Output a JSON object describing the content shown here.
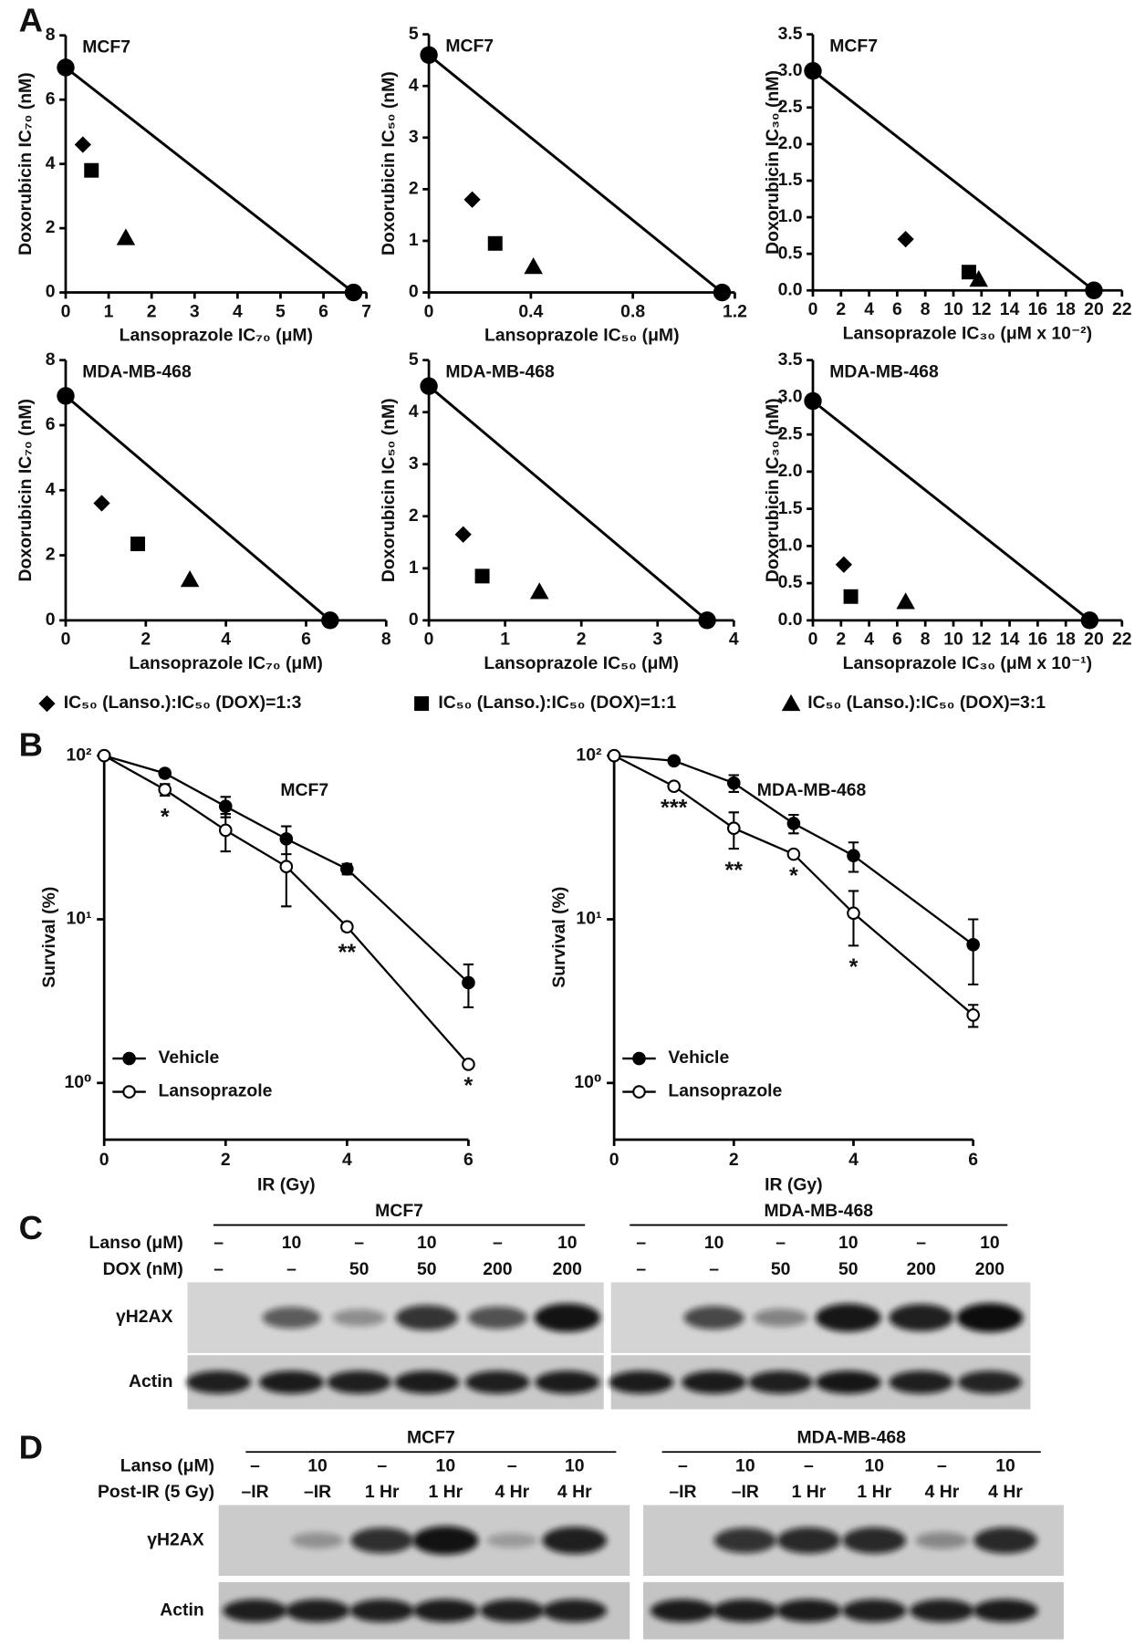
{
  "panel_labels": [
    "A",
    "B",
    "C",
    "D"
  ],
  "chart_data": [
    {
      "type": "scatter",
      "title": "MCF7",
      "xlabel": "Lansoprazole IC₇₀ (μM)",
      "ylabel": "Doxorubicin IC₇₀ (nM)",
      "xlim": [
        0,
        7
      ],
      "xticks": [
        0,
        1,
        2,
        3,
        4,
        5,
        6,
        7
      ],
      "ylim": [
        0,
        8
      ],
      "yticks": [
        0,
        2,
        4,
        6,
        8
      ],
      "additivity_line": {
        "x": [
          0,
          6.7
        ],
        "values": [
          7,
          0
        ]
      },
      "series": [
        {
          "marker": "diamond",
          "x": [
            0.4
          ],
          "values": [
            4.6
          ]
        },
        {
          "marker": "square",
          "x": [
            0.6
          ],
          "values": [
            3.8
          ]
        },
        {
          "marker": "triangle",
          "x": [
            1.4
          ],
          "values": [
            1.7
          ]
        }
      ]
    },
    {
      "type": "scatter",
      "title": "MCF7",
      "xlabel": "Lansoprazole IC₅₀ (μM)",
      "ylabel": "Doxorubicin IC₅₀ (nM)",
      "xlim": [
        0,
        1.2
      ],
      "xticks": [
        0,
        0.4,
        0.8,
        1.2
      ],
      "ylim": [
        0,
        5
      ],
      "yticks": [
        0,
        1,
        2,
        3,
        4,
        5
      ],
      "additivity_line": {
        "x": [
          0,
          1.15
        ],
        "values": [
          4.6,
          0
        ]
      },
      "series": [
        {
          "marker": "diamond",
          "x": [
            0.17
          ],
          "values": [
            1.8
          ]
        },
        {
          "marker": "square",
          "x": [
            0.26
          ],
          "values": [
            0.95
          ]
        },
        {
          "marker": "triangle",
          "x": [
            0.41
          ],
          "values": [
            0.5
          ]
        }
      ]
    },
    {
      "type": "scatter",
      "title": "MCF7",
      "xlabel": "Lansoprazole IC₃₀ (μM x 10⁻²)",
      "ylabel": "Doxorubicin IC₃₀ (nM)",
      "xlim": [
        0,
        22
      ],
      "xticks": [
        0,
        2,
        4,
        6,
        8,
        10,
        12,
        14,
        16,
        18,
        20,
        22
      ],
      "ylim": [
        0,
        3.5
      ],
      "yticks": [
        {
          "value": 0,
          "label": "0.0"
        },
        0.5,
        {
          "value": 1,
          "label": "1.0"
        },
        1.5,
        {
          "value": 2,
          "label": "2.0"
        },
        2.5,
        {
          "value": 3,
          "label": "3.0"
        },
        3.5
      ],
      "additivity_line": {
        "x": [
          0,
          20
        ],
        "values": [
          3.0,
          0
        ]
      },
      "series": [
        {
          "marker": "diamond",
          "x": [
            6.6
          ],
          "values": [
            0.7
          ]
        },
        {
          "marker": "square",
          "x": [
            11.1
          ],
          "values": [
            0.25
          ]
        },
        {
          "marker": "triangle",
          "x": [
            11.8
          ],
          "values": [
            0.15
          ]
        }
      ]
    },
    {
      "type": "scatter",
      "title": "MDA-MB-468",
      "xlabel": "Lansoprazole IC₇₀ (μM)",
      "ylabel": "Doxorubicin IC₇₀ (nM)",
      "xlim": [
        0,
        8
      ],
      "xticks": [
        0,
        2,
        4,
        6,
        8
      ],
      "ylim": [
        0,
        8
      ],
      "yticks": [
        0,
        2,
        4,
        6,
        8
      ],
      "additivity_line": {
        "x": [
          0,
          6.6
        ],
        "values": [
          6.9,
          0
        ]
      },
      "series": [
        {
          "marker": "diamond",
          "x": [
            0.9
          ],
          "values": [
            3.6
          ]
        },
        {
          "marker": "square",
          "x": [
            1.8
          ],
          "values": [
            2.35
          ]
        },
        {
          "marker": "triangle",
          "x": [
            3.1
          ],
          "values": [
            1.25
          ]
        }
      ]
    },
    {
      "type": "scatter",
      "title": "MDA-MB-468",
      "xlabel": "Lansoprazole IC₅₀ (μM)",
      "ylabel": "Doxorubicin IC₅₀ (nM)",
      "xlim": [
        0,
        4
      ],
      "xticks": [
        0,
        1,
        2,
        3,
        4
      ],
      "ylim": [
        0,
        5
      ],
      "yticks": [
        0,
        1,
        2,
        3,
        4,
        5
      ],
      "additivity_line": {
        "x": [
          0,
          3.65
        ],
        "values": [
          4.5,
          0
        ]
      },
      "series": [
        {
          "marker": "diamond",
          "x": [
            0.45
          ],
          "values": [
            1.65
          ]
        },
        {
          "marker": "square",
          "x": [
            0.7
          ],
          "values": [
            0.85
          ]
        },
        {
          "marker": "triangle",
          "x": [
            1.45
          ],
          "values": [
            0.55
          ]
        }
      ]
    },
    {
      "type": "scatter",
      "title": "MDA-MB-468",
      "xlabel": "Lansoprazole IC₃₀ (μM x 10⁻¹)",
      "ylabel": "Doxorubicin IC₃₀ (nM)",
      "xlim": [
        0,
        22
      ],
      "xticks": [
        0,
        2,
        4,
        6,
        8,
        10,
        12,
        14,
        16,
        18,
        20,
        22
      ],
      "ylim": [
        0,
        3.5
      ],
      "yticks": [
        {
          "value": 0,
          "label": "0.0"
        },
        0.5,
        {
          "value": 1,
          "label": "1.0"
        },
        1.5,
        {
          "value": 2,
          "label": "2.0"
        },
        2.5,
        {
          "value": 3,
          "label": "3.0"
        },
        3.5
      ],
      "additivity_line": {
        "x": [
          0,
          19.7
        ],
        "values": [
          2.95,
          0
        ]
      },
      "series": [
        {
          "marker": "diamond",
          "x": [
            2.2
          ],
          "values": [
            0.75
          ]
        },
        {
          "marker": "square",
          "x": [
            2.7
          ],
          "values": [
            0.32
          ]
        },
        {
          "marker": "triangle",
          "x": [
            6.6
          ],
          "values": [
            0.25
          ]
        }
      ]
    },
    {
      "type": "line",
      "title": "MCF7",
      "xlabel": "IR (Gy)",
      "ylabel": "Survival (%)",
      "log_y": true,
      "xlim": [
        0,
        6
      ],
      "xticks": [
        0,
        2,
        4,
        6
      ],
      "ylim": [
        0.45,
        100
      ],
      "yticks": [
        {
          "value": 1,
          "label": "10⁰"
        },
        {
          "value": 10,
          "label": "10¹"
        },
        {
          "value": 100,
          "label": "10²"
        }
      ],
      "x": [
        0,
        1,
        2,
        3,
        4,
        6
      ],
      "legend": "lower left",
      "series": [
        {
          "name": "Vehicle",
          "color": "#000000",
          "filled": true,
          "values": [
            100,
            78,
            49,
            31,
            20.3,
            4.1
          ],
          "errors": [
            0,
            4,
            7,
            6,
            1.5,
            1.2
          ]
        },
        {
          "name": "Lansoprazole",
          "color": "#000000",
          "filled": false,
          "values": [
            100,
            62,
            35,
            21,
            9.0,
            1.3
          ],
          "errors": [
            0,
            5,
            9,
            9,
            0.5,
            0
          ]
        }
      ],
      "annotations": [
        {
          "x": 1,
          "text": "*"
        },
        {
          "x": 4,
          "text": "**"
        },
        {
          "x": 6,
          "text": "*"
        }
      ]
    },
    {
      "type": "line",
      "title": "MDA-MB-468",
      "xlabel": "IR (Gy)",
      "ylabel": "Survival (%)",
      "log_y": true,
      "xlim": [
        0,
        6
      ],
      "xticks": [
        0,
        2,
        4,
        6
      ],
      "ylim": [
        0.45,
        100
      ],
      "yticks": [
        {
          "value": 1,
          "label": "10⁰"
        },
        {
          "value": 10,
          "label": "10¹"
        },
        {
          "value": 100,
          "label": "10²"
        }
      ],
      "x": [
        0,
        1,
        2,
        3,
        4,
        6
      ],
      "legend": "lower left",
      "series": [
        {
          "name": "Vehicle",
          "color": "#000000",
          "filled": true,
          "values": [
            100,
            93,
            68,
            38.5,
            24.5,
            7.0
          ],
          "errors": [
            0,
            0,
            8,
            5,
            5,
            3
          ]
        },
        {
          "name": "Lansoprazole",
          "color": "#000000",
          "filled": false,
          "values": [
            100,
            65,
            36,
            25,
            10.9,
            2.6
          ],
          "errors": [
            0,
            0,
            9,
            0,
            4,
            0.4
          ]
        }
      ],
      "annotations": [
        {
          "x": 1,
          "text": "***"
        },
        {
          "x": 2,
          "text": "**"
        },
        {
          "x": 3,
          "text": "*"
        },
        {
          "x": 4,
          "text": "*"
        }
      ]
    }
  ],
  "legend": [
    {
      "marker": "diamond",
      "label": "IC₅₀ (Lanso.):IC₅₀ (DOX)=1:3"
    },
    {
      "marker": "square",
      "label": "IC₅₀ (Lanso.):IC₅₀ (DOX)=1:1"
    },
    {
      "marker": "triangle",
      "label": "IC₅₀ (Lanso.):IC₅₀ (DOX)=3:1"
    }
  ],
  "blots": [
    {
      "row_labels": [
        "Lanso (μM)",
        "DOX (nM)"
      ],
      "bands": [
        "γH2AX",
        "Actin"
      ],
      "groups": [
        {
          "title": "MCF7",
          "rows": [
            [
              "–",
              "10",
              "–",
              "10",
              "–",
              "10"
            ],
            [
              "–",
              "–",
              "50",
              "50",
              "200",
              "200"
            ]
          ]
        },
        {
          "title": "MDA-MB-468",
          "rows": [
            [
              "–",
              "10",
              "–",
              "10",
              "–",
              "10"
            ],
            [
              "–",
              "–",
              "50",
              "50",
              "200",
              "200"
            ]
          ]
        }
      ]
    },
    {
      "row_labels": [
        "Lanso (μM)",
        "Post-IR (5 Gy)"
      ],
      "bands": [
        "γH2AX",
        "Actin"
      ],
      "groups": [
        {
          "title": "MCF7",
          "rows": [
            [
              "–",
              "10",
              "–",
              "10",
              "–",
              "10"
            ],
            [
              "–IR",
              "–IR",
              "1 Hr",
              "1 Hr",
              "4 Hr",
              "4 Hr"
            ]
          ]
        },
        {
          "title": "MDA-MB-468",
          "rows": [
            [
              "–",
              "10",
              "–",
              "10",
              "–",
              "10"
            ],
            [
              "–IR",
              "–IR",
              "1 Hr",
              "1 Hr",
              "4 Hr",
              "4 Hr"
            ]
          ]
        }
      ]
    }
  ]
}
